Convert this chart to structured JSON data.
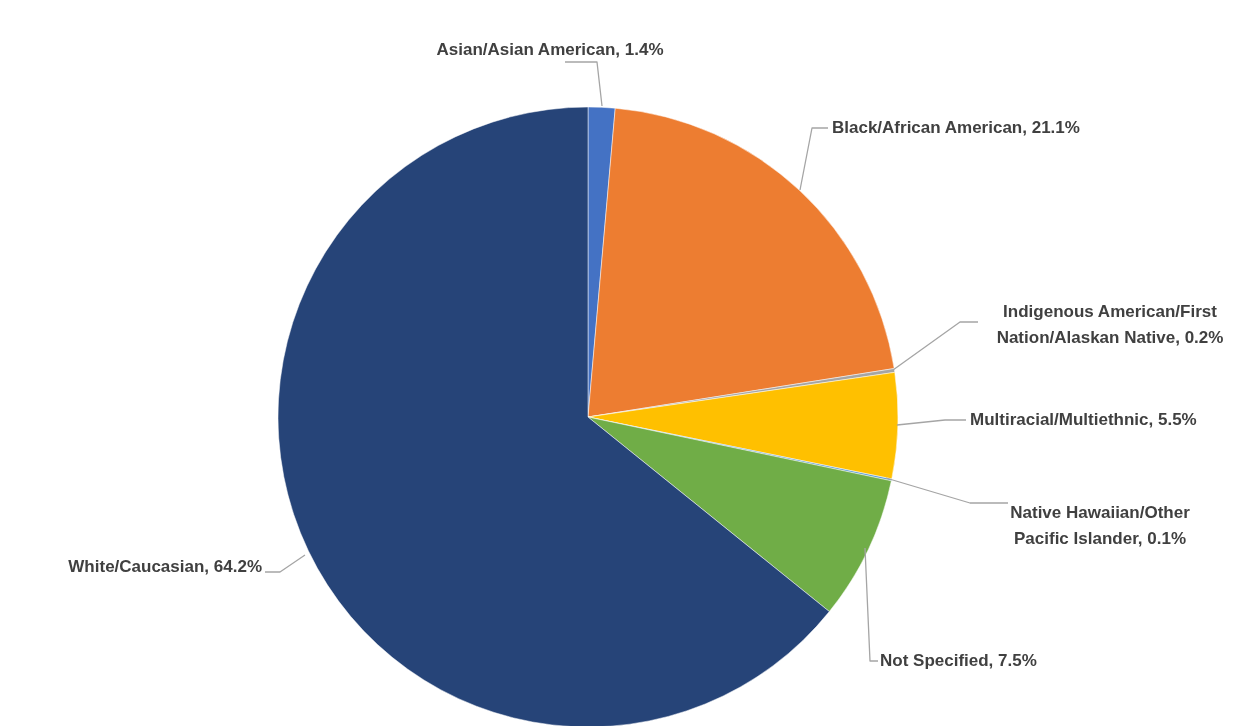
{
  "chart_data": {
    "type": "pie",
    "categories": [
      "Asian/Asian American",
      "Black/African American",
      "Indigenous American/First Nation/Alaskan Native",
      "Multiracial/Multiethnic",
      "Native Hawaiian/Other Pacific Islander",
      "Not Specified",
      "White/Caucasian"
    ],
    "values": [
      1.4,
      21.1,
      0.2,
      5.5,
      0.1,
      7.5,
      64.2
    ],
    "value_labels": [
      "1.4%",
      "21.1%",
      "0.2%",
      "5.5%",
      "0.1%",
      "7.5%",
      "64.2%"
    ],
    "colors": [
      "#4472c4",
      "#ed7d31",
      "#a5a5a5",
      "#ffc000",
      "#5b9bd5",
      "#70ad47",
      "#264478"
    ]
  }
}
